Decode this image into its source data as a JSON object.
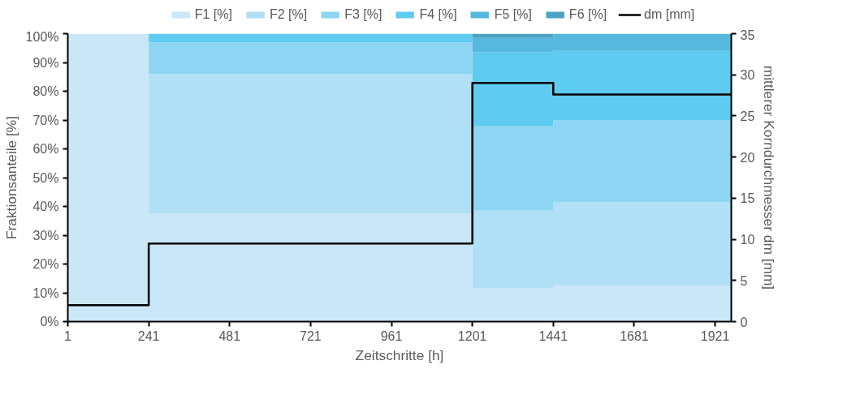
{
  "chart_data": {
    "type": "area",
    "stacked": true,
    "xlabel": "Zeitschritte [h]",
    "ylabel": "Fraktionsanteile [%]",
    "y2label": "mittlerer Korndurchmesser dm [mm]",
    "x": [
      1,
      241,
      1201,
      1441,
      1969
    ],
    "xlim": [
      1,
      1969
    ],
    "xticks": [
      1,
      241,
      481,
      721,
      961,
      1201,
      1441,
      1681,
      1921
    ],
    "ylim": [
      0,
      100
    ],
    "yticks": [
      {
        "value": 0,
        "label": "0%"
      },
      {
        "value": 10,
        "label": "10%"
      },
      {
        "value": 20,
        "label": "20%"
      },
      {
        "value": 30,
        "label": "30%"
      },
      {
        "value": 40,
        "label": "40%"
      },
      {
        "value": 50,
        "label": "50%"
      },
      {
        "value": 60,
        "label": "60%"
      },
      {
        "value": 70,
        "label": "70%"
      },
      {
        "value": 80,
        "label": "80%"
      },
      {
        "value": 90,
        "label": "90%"
      },
      {
        "value": 100,
        "label": "100%"
      }
    ],
    "y2lim": [
      0,
      35
    ],
    "y2ticks": [
      0,
      5,
      10,
      15,
      20,
      25,
      30,
      35
    ],
    "grid": false,
    "legend": "top",
    "series": [
      {
        "name": "F1 [%]",
        "color": "#c9e7f7",
        "values": [
          100,
          37.5,
          11.5,
          12.5,
          12.5
        ]
      },
      {
        "name": "F2 [%]",
        "color": "#b0e0f5",
        "values": [
          0,
          48.5,
          27,
          29,
          29
        ]
      },
      {
        "name": "F3 [%]",
        "color": "#8dd5f3",
        "values": [
          0,
          11,
          29.5,
          28.5,
          28.5
        ]
      },
      {
        "name": "F4 [%]",
        "color": "#5ecbf1",
        "values": [
          0,
          3,
          25.5,
          24,
          24
        ]
      },
      {
        "name": "F5 [%]",
        "color": "#55b8dc",
        "values": [
          0,
          0,
          5,
          6,
          6
        ]
      },
      {
        "name": "F6 [%]",
        "color": "#4aa3c4",
        "values": [
          0,
          0,
          1.5,
          0,
          0
        ]
      },
      {
        "name": "dm [mm]",
        "type": "step",
        "axis": "y2",
        "color": "#000000",
        "values": [
          2,
          9.5,
          29,
          27.6,
          27.6
        ]
      }
    ]
  }
}
